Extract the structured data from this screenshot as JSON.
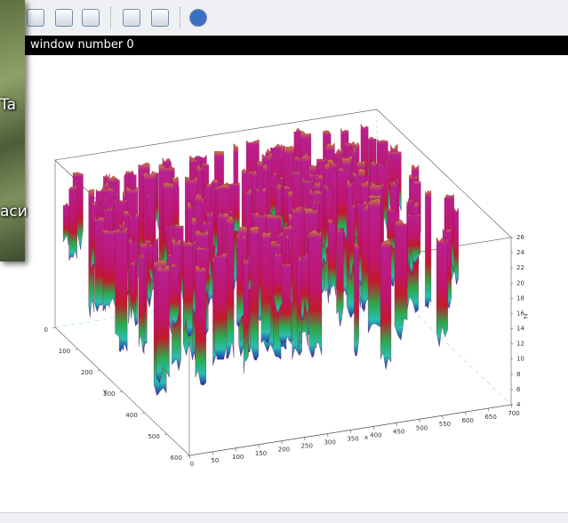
{
  "window": {
    "title": "window number 0"
  },
  "background_app": {
    "texts": [
      "Ta",
      "аси"
    ]
  },
  "plot": {
    "x_label": "x",
    "y_label": "y",
    "z_label": "Z",
    "xticks": [
      0,
      50,
      100,
      150,
      200,
      250,
      300,
      350,
      400,
      450,
      500,
      550,
      600,
      650,
      700
    ],
    "yticks": [
      0,
      100,
      200,
      300,
      400,
      500,
      600
    ],
    "zticks": [
      4,
      6,
      8,
      10,
      12,
      14,
      16,
      18,
      20,
      22,
      24,
      26
    ]
  }
}
